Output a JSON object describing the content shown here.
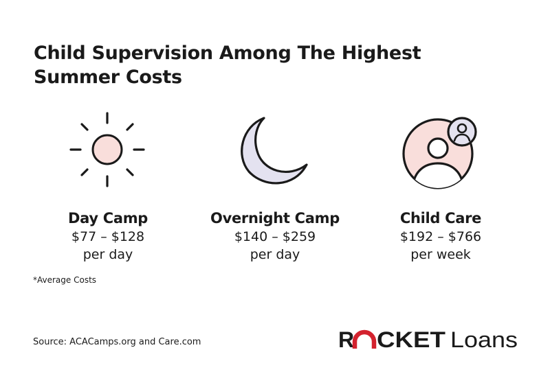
{
  "title": "Child Supervision Among The Highest Summer Costs",
  "items": [
    {
      "icon": "sun-icon",
      "name": "Day Camp",
      "range": "$77 – $128",
      "unit": "per day"
    },
    {
      "icon": "moon-icon",
      "name": "Overnight Camp",
      "range": "$140 – $259",
      "unit": "per day"
    },
    {
      "icon": "child-care-icon",
      "name": "Child Care",
      "range": "$192 – $766",
      "unit": "per week"
    }
  ],
  "footnote": "*Average Costs",
  "source": "Source: ACACamps.org and Care.com",
  "brand": {
    "name": "ROCKET Loans",
    "rocket": "ROCKET",
    "loans": "Loans"
  },
  "colors": {
    "text": "#1a1a1a",
    "sun_fill": "#f9dedb",
    "moon_fill": "#e4e2f0",
    "person_fill": "#f9dedb",
    "brand_accent": "#d3222e"
  }
}
